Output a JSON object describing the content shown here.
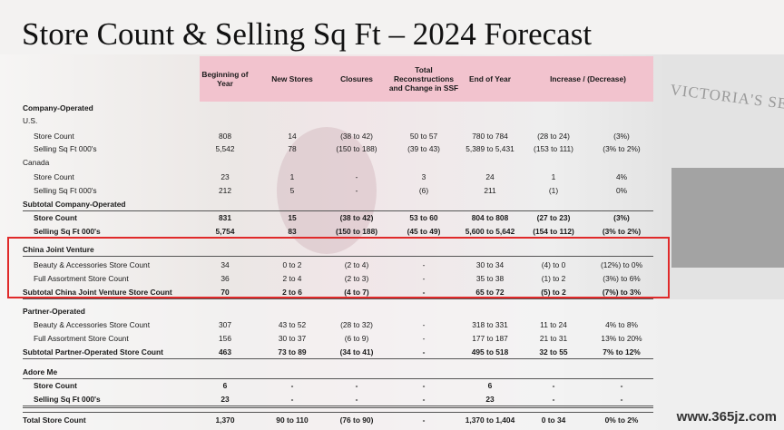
{
  "title": "Store Count & Selling Sq Ft – 2024 Forecast",
  "store_sign": "VICTORIA'S SECRET",
  "watermark": "www.365jz.com",
  "table": {
    "headers": [
      "Beginning of Year",
      "New Stores",
      "Closures",
      "Total Reconstructions and Change in SSF",
      "End of Year",
      "Increase / (Decrease)"
    ],
    "rows": [
      {
        "label": "Company-Operated",
        "bold": true
      },
      {
        "label": "U.S."
      },
      {
        "label": "Store Count",
        "cells": [
          "808",
          "14",
          "(38 to 42)",
          "50 to 57",
          "780 to 784",
          "(28 to 24)",
          "(3%)"
        ]
      },
      {
        "label": "Selling Sq Ft 000's",
        "cells": [
          "5,542",
          "78",
          "(150 to 188)",
          "(39 to 43)",
          "5,389 to 5,431",
          "(153 to 111)",
          "(3% to 2%)"
        ]
      },
      {
        "label": "Canada"
      },
      {
        "label": "Store Count",
        "cells": [
          "23",
          "1",
          "-",
          "3",
          "24",
          "1",
          "4%"
        ]
      },
      {
        "label": "Selling Sq Ft 000's",
        "cells": [
          "212",
          "5",
          "-",
          "(6)",
          "211",
          "(1)",
          "0%"
        ]
      },
      {
        "label": "Subtotal Company-Operated",
        "bold": true
      },
      {
        "label": "Store Count",
        "bold": true,
        "cells": [
          "831",
          "15",
          "(38 to 42)",
          "53 to 60",
          "804 to 808",
          "(27 to 23)",
          "(3%)"
        ]
      },
      {
        "label": "Selling Sq Ft 000's",
        "bold": true,
        "cells": [
          "5,754",
          "83",
          "(150 to 188)",
          "(45 to 49)",
          "5,600 to 5,642",
          "(154 to 112)",
          "(3% to 2%)"
        ]
      },
      {
        "label": "China Joint Venture",
        "bold": true
      },
      {
        "label": "Beauty & Accessories Store Count",
        "cells": [
          "34",
          "0 to 2",
          "(2 to 4)",
          "-",
          "30 to 34",
          "(4) to 0",
          "(12%) to 0%"
        ]
      },
      {
        "label": "Full Assortment Store Count",
        "cells": [
          "36",
          "2 to 4",
          "(2 to 3)",
          "-",
          "35 to 38",
          "(1) to 2",
          "(3%) to 6%"
        ]
      },
      {
        "label": "Subtotal China Joint Venture Store Count",
        "bold": true,
        "cells": [
          "70",
          "2 to 6",
          "(4 to 7)",
          "-",
          "65 to 72",
          "(5) to 2",
          "(7%) to 3%"
        ]
      },
      {
        "label": "Partner-Operated",
        "bold": true
      },
      {
        "label": "Beauty & Accessories Store Count",
        "cells": [
          "307",
          "43 to 52",
          "(28 to 32)",
          "-",
          "318 to 331",
          "11 to 24",
          "4% to 8%"
        ]
      },
      {
        "label": "Full Assortment Store Count",
        "cells": [
          "156",
          "30 to 37",
          "(6 to 9)",
          "-",
          "177 to 187",
          "21 to 31",
          "13% to 20%"
        ]
      },
      {
        "label": "Subtotal Partner-Operated Store Count",
        "bold": true,
        "cells": [
          "463",
          "73 to 89",
          "(34 to 41)",
          "-",
          "495 to 518",
          "32 to 55",
          "7% to 12%"
        ]
      },
      {
        "label": "Adore Me",
        "bold": true
      },
      {
        "label": "Store Count",
        "bold": true,
        "cells": [
          "6",
          "-",
          "-",
          "-",
          "6",
          "-",
          "-"
        ]
      },
      {
        "label": "Selling Sq Ft 000's",
        "bold": true,
        "cells": [
          "23",
          "-",
          "-",
          "-",
          "23",
          "-",
          "-"
        ]
      },
      {
        "label": "Total Store Count",
        "bold": true,
        "cells": [
          "1,370",
          "90 to 110",
          "(76 to 90)",
          "-",
          "1,370 to 1,404",
          "0 to 34",
          "0% to 2%"
        ]
      }
    ]
  }
}
